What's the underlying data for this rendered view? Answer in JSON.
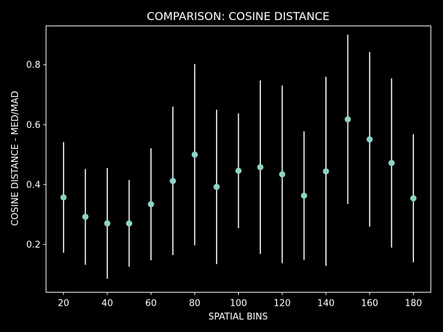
{
  "chart_data": {
    "type": "scatter",
    "title": "COMPARISON: COSINE DISTANCE",
    "xlabel": "SPATIAL BINS",
    "ylabel": "COSINE DISTANCE - MED/MAD",
    "xlim": [
      12,
      188
    ],
    "ylim": [
      0.04,
      0.93
    ],
    "xticks": [
      20,
      40,
      60,
      80,
      100,
      120,
      140,
      160,
      180
    ],
    "yticks": [
      0.2,
      0.4,
      0.6,
      0.8
    ],
    "grid": false,
    "colors": {
      "background": "#000000",
      "marker": "#8dd3c7",
      "errorbar": "#ffffff",
      "axes": "#ffffff"
    },
    "x": [
      20,
      30,
      40,
      50,
      60,
      70,
      80,
      90,
      100,
      110,
      120,
      130,
      140,
      150,
      160,
      170,
      180
    ],
    "y": [
      0.357,
      0.292,
      0.27,
      0.27,
      0.334,
      0.412,
      0.5,
      0.392,
      0.446,
      0.458,
      0.434,
      0.363,
      0.444,
      0.618,
      0.551,
      0.472,
      0.354
    ],
    "err": [
      0.185,
      0.16,
      0.185,
      0.145,
      0.187,
      0.248,
      0.303,
      0.258,
      0.192,
      0.29,
      0.297,
      0.215,
      0.316,
      0.283,
      0.292,
      0.283,
      0.214
    ]
  }
}
